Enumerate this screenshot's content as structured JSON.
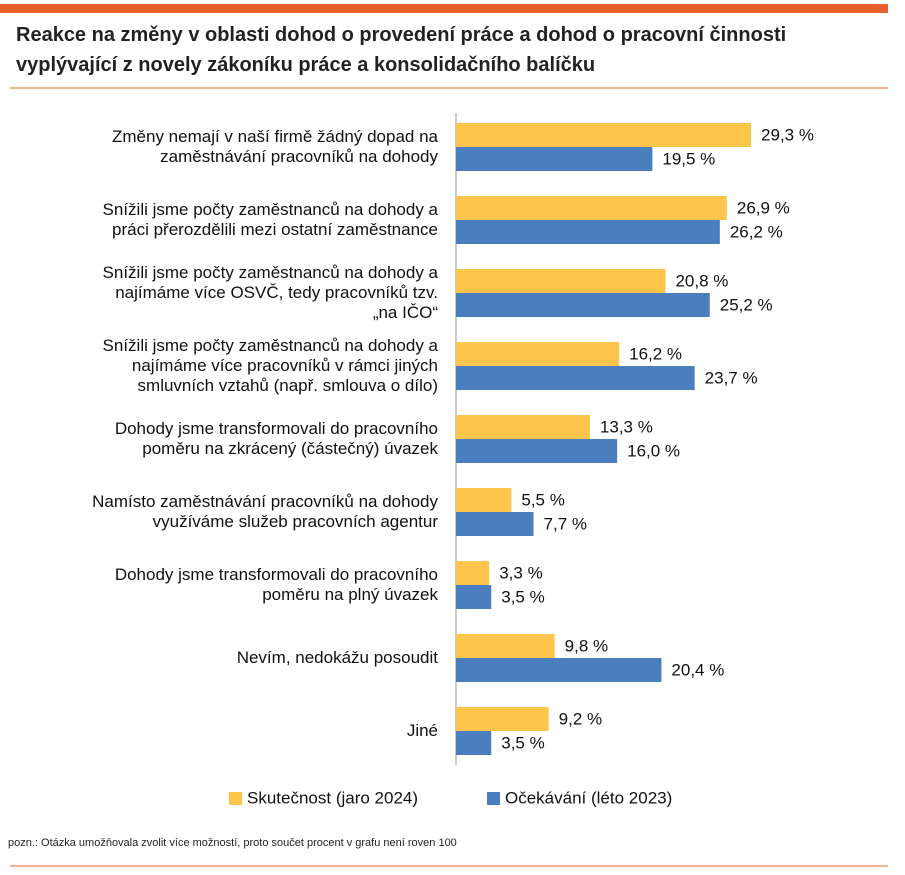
{
  "chart_data": {
    "type": "barh",
    "title": "Reakce na změny v oblasti dohod o provedení práce a dohod o pracovní činnosti\nvyplývající z novely zákoníku práce a konsolidačního balíčku",
    "categories": [
      "Změny nemají v naší firmě žádný dopad na\nzaměstnávání pracovníků na dohody",
      "Snížili jsme počty zaměstnanců na dohody a\npráci přerozdělili mezi ostatní zaměstnance",
      "Snížili jsme počty zaměstnanců na dohody a\nnajímáme více OSVČ, tedy pracovníků tzv.\n„na IČO“",
      "Snížili jsme počty zaměstnanců na dohody a\nnajímáme více pracovníků v rámci jiných\nsmluvních vztahů (např. smlouva o dílo)",
      "Dohody jsme transformovali do pracovního\npoměru na zkrácený (částečný) úvazek",
      "Namísto zaměstnávání pracovníků na dohody\nvyužíváme služeb pracovních agentur",
      "Dohody jsme transformovali do pracovního\npoměru na plný úvazek",
      "Nevím, nedokážu posoudit",
      "Jiné"
    ],
    "series": [
      {
        "name": "Skutečnost (jaro 2024)",
        "color": "#fdc54c",
        "values": [
          29.3,
          26.9,
          20.8,
          16.2,
          13.3,
          5.5,
          3.3,
          9.8,
          9.2
        ],
        "value_labels": [
          "29,3 %",
          "26,9 %",
          "20,8 %",
          "16,2 %",
          "13,3 %",
          "5,5 %",
          "3,3 %",
          "9,8 %",
          "9,2 %"
        ]
      },
      {
        "name": "Očekávání (léto 2023)",
        "color": "#4a7ebf",
        "values": [
          19.5,
          26.2,
          25.2,
          23.7,
          16.0,
          7.7,
          3.5,
          20.4,
          3.5
        ],
        "value_labels": [
          "19,5 %",
          "26,2 %",
          "25,2 %",
          "23,7 %",
          "16,0 %",
          "7,7 %",
          "3,5 %",
          "20,4 %",
          "3,5 %"
        ]
      }
    ],
    "legend": "bottom",
    "note": "pozn.: Otázka umožňovala zvolit více možností, proto součet procent v grafu není roven 100"
  }
}
